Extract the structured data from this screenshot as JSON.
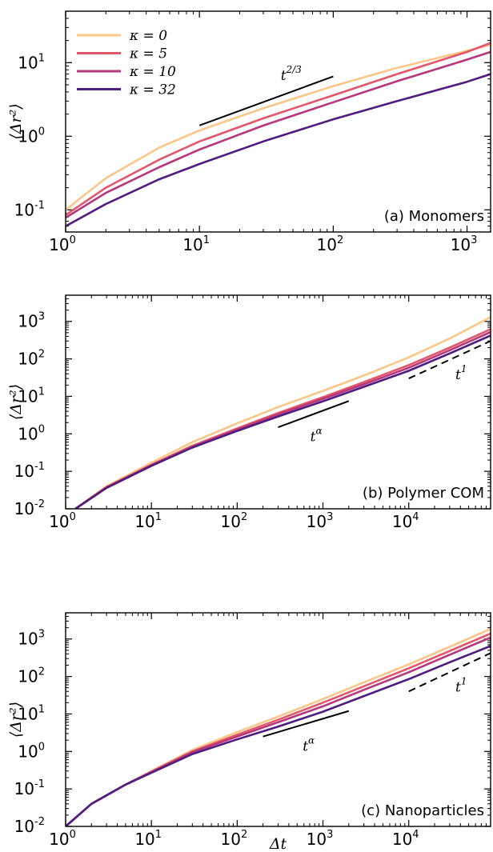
{
  "colors": {
    "series": [
      "#fcc688",
      "#e4566a",
      "#b6377a",
      "#4f1c80"
    ],
    "axis": "#000000"
  },
  "legend": {
    "entries": [
      "κ = 0",
      "κ = 5",
      "κ = 10",
      "κ = 32"
    ],
    "placement": "top-left"
  },
  "chart_data": [
    {
      "type": "line",
      "panel_label": "(a) Monomers",
      "xlabel": "",
      "ylabel": "⟨Δr²⟩",
      "xscale": "log",
      "yscale": "log",
      "xlim": [
        1,
        1500
      ],
      "ylim": [
        0.05,
        50
      ],
      "xticks": [
        1,
        10,
        100,
        1000
      ],
      "yticks": [
        0.1,
        1,
        10
      ],
      "series": [
        {
          "name": "κ = 0",
          "x": [
            1,
            2,
            5,
            10,
            30,
            100,
            300,
            1000,
            1500
          ],
          "y": [
            0.1,
            0.27,
            0.7,
            1.2,
            2.4,
            4.8,
            8.5,
            14.5,
            17.5
          ]
        },
        {
          "name": "κ = 5",
          "x": [
            1,
            2,
            5,
            10,
            30,
            100,
            300,
            1000,
            1500
          ],
          "y": [
            0.085,
            0.2,
            0.48,
            0.85,
            1.75,
            3.6,
            7.0,
            14.0,
            18.5
          ]
        },
        {
          "name": "κ = 10",
          "x": [
            1,
            2,
            5,
            10,
            30,
            100,
            300,
            1000,
            1500
          ],
          "y": [
            0.078,
            0.17,
            0.38,
            0.66,
            1.4,
            2.9,
            5.6,
            11.0,
            14.0
          ]
        },
        {
          "name": "κ = 32",
          "x": [
            1,
            2,
            5,
            10,
            30,
            100,
            300,
            1000,
            1500
          ],
          "y": [
            0.06,
            0.12,
            0.26,
            0.42,
            0.85,
            1.7,
            3.0,
            5.5,
            7.0
          ]
        }
      ],
      "guides": [
        {
          "label": "t^{2/3}",
          "exp_label": "2/3",
          "x": [
            10,
            100
          ],
          "y": [
            1.4,
            6.5
          ],
          "style": "solid"
        }
      ]
    },
    {
      "type": "line",
      "panel_label": "(b) Polymer COM",
      "xlabel": "",
      "ylabel": "⟨Δr²⟩",
      "xscale": "log",
      "yscale": "log",
      "xlim": [
        1,
        90000
      ],
      "ylim": [
        0.01,
        5000
      ],
      "xticks": [
        1,
        10,
        100,
        1000,
        10000
      ],
      "yticks": [
        0.01,
        0.1,
        1,
        10,
        100,
        1000
      ],
      "series": [
        {
          "name": "κ = 0",
          "x": [
            1.3,
            3,
            10,
            30,
            100,
            300,
            1000,
            3000,
            10000,
            30000,
            90000
          ],
          "y": [
            0.01,
            0.04,
            0.17,
            0.6,
            1.9,
            5.2,
            14,
            36,
            110,
            350,
            1300
          ]
        },
        {
          "name": "κ = 5",
          "x": [
            1.3,
            3,
            10,
            30,
            100,
            300,
            1000,
            3000,
            10000,
            30000,
            90000
          ],
          "y": [
            0.01,
            0.038,
            0.15,
            0.48,
            1.4,
            3.6,
            9.5,
            24,
            68,
            200,
            620
          ]
        },
        {
          "name": "κ = 10",
          "x": [
            1.3,
            3,
            10,
            30,
            100,
            300,
            1000,
            3000,
            10000,
            30000,
            90000
          ],
          "y": [
            0.01,
            0.037,
            0.145,
            0.45,
            1.3,
            3.3,
            8.6,
            21,
            58,
            170,
            520
          ]
        },
        {
          "name": "κ = 32",
          "x": [
            1.3,
            3,
            10,
            30,
            100,
            300,
            1000,
            3000,
            10000,
            30000,
            90000
          ],
          "y": [
            0.01,
            0.036,
            0.14,
            0.43,
            1.2,
            2.9,
            7.4,
            18,
            48,
            140,
            420
          ]
        }
      ],
      "guides": [
        {
          "label": "t^α",
          "exp_label": "α",
          "x": [
            300,
            2000
          ],
          "y": [
            1.5,
            7.5
          ],
          "style": "solid"
        },
        {
          "label": "t^1",
          "exp_label": "1",
          "x": [
            10000,
            90000
          ],
          "y": [
            30,
            300
          ],
          "style": "dashed"
        }
      ]
    },
    {
      "type": "line",
      "panel_label": "(c) Nanoparticles",
      "xlabel": "Δt",
      "ylabel": "⟨Δr²⟩",
      "xscale": "log",
      "yscale": "log",
      "xlim": [
        1,
        90000
      ],
      "ylim": [
        0.01,
        5000
      ],
      "xticks": [
        1,
        10,
        100,
        1000,
        10000
      ],
      "yticks": [
        0.01,
        0.1,
        1,
        10,
        100,
        1000
      ],
      "series": [
        {
          "name": "κ = 0",
          "x": [
            1,
            2,
            5,
            10,
            30,
            100,
            300,
            1000,
            3000,
            10000,
            30000,
            90000
          ],
          "y": [
            0.01,
            0.04,
            0.13,
            0.3,
            1.1,
            3.3,
            8.5,
            25,
            70,
            210,
            620,
            1850
          ]
        },
        {
          "name": "κ = 5",
          "x": [
            1,
            2,
            5,
            10,
            30,
            100,
            300,
            1000,
            3000,
            10000,
            30000,
            90000
          ],
          "y": [
            0.01,
            0.04,
            0.13,
            0.29,
            1.0,
            2.8,
            7.0,
            20,
            55,
            165,
            480,
            1400
          ]
        },
        {
          "name": "κ = 10",
          "x": [
            1,
            2,
            5,
            10,
            30,
            100,
            300,
            1000,
            3000,
            10000,
            30000,
            90000
          ],
          "y": [
            0.01,
            0.04,
            0.13,
            0.28,
            0.95,
            2.5,
            6.0,
            16,
            44,
            130,
            380,
            1100
          ]
        },
        {
          "name": "κ = 32",
          "x": [
            1,
            2,
            5,
            10,
            30,
            100,
            300,
            1000,
            3000,
            10000,
            30000,
            90000
          ],
          "y": [
            0.01,
            0.04,
            0.13,
            0.27,
            0.85,
            2.1,
            4.6,
            11.5,
            30,
            85,
            240,
            650
          ]
        }
      ],
      "guides": [
        {
          "label": "t^α",
          "exp_label": "α",
          "x": [
            200,
            2000
          ],
          "y": [
            2.5,
            12
          ],
          "style": "solid"
        },
        {
          "label": "t^1",
          "exp_label": "1",
          "x": [
            10000,
            90000
          ],
          "y": [
            40,
            420
          ],
          "style": "dashed"
        }
      ]
    }
  ]
}
